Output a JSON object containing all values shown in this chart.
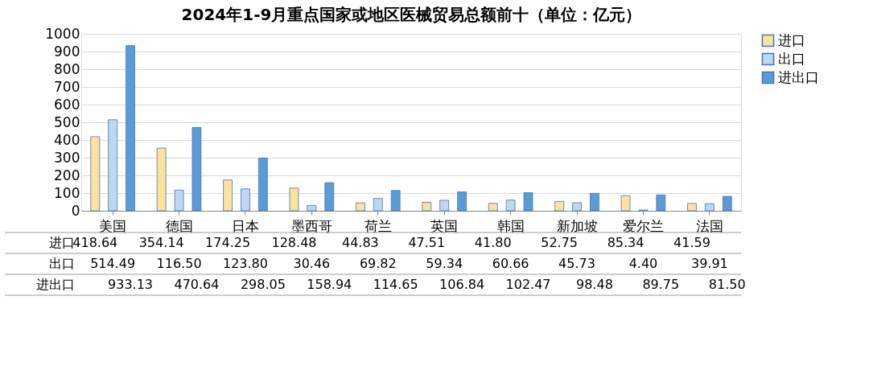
{
  "chart_data": {
    "type": "bar",
    "title": "2024年1-9月重点国家或地区医械贸易总额前十（单位：亿元）",
    "categories": [
      "美国",
      "德国",
      "日本",
      "墨西哥",
      "荷兰",
      "英国",
      "韩国",
      "新加坡",
      "爱尔兰",
      "法国"
    ],
    "series": [
      {
        "name": "进口",
        "color": "#fbe39a",
        "values": [
          418.64,
          354.14,
          174.25,
          128.48,
          44.83,
          47.51,
          41.8,
          52.75,
          85.34,
          41.59
        ],
        "value_labels": [
          "418.64",
          "354.14",
          "174.25",
          "128.48",
          "44.83",
          "47.51",
          "41.80",
          "52.75",
          "85.34",
          "41.59"
        ]
      },
      {
        "name": "出口",
        "color": "#bdd7ee",
        "values": [
          514.49,
          116.5,
          123.8,
          30.46,
          69.82,
          59.34,
          60.66,
          45.73,
          4.4,
          39.91
        ],
        "value_labels": [
          "514.49",
          "116.50",
          "123.80",
          "30.46",
          "69.82",
          "59.34",
          "60.66",
          "45.73",
          "4.40",
          "39.91"
        ]
      },
      {
        "name": "进出口",
        "color": "#5b9bd5",
        "values": [
          933.13,
          470.64,
          298.05,
          158.94,
          114.65,
          106.84,
          102.47,
          98.48,
          89.75,
          81.5
        ],
        "value_labels": [
          "933.13",
          "470.64",
          "298.05",
          "158.94",
          "114.65",
          "106.84",
          "102.47",
          "98.48",
          "89.75",
          "81.50"
        ]
      }
    ],
    "ylim": [
      0,
      1000
    ],
    "yticks": [
      0,
      100,
      200,
      300,
      400,
      500,
      600,
      700,
      800,
      900,
      1000
    ],
    "grid": "y",
    "legend": "top right"
  }
}
